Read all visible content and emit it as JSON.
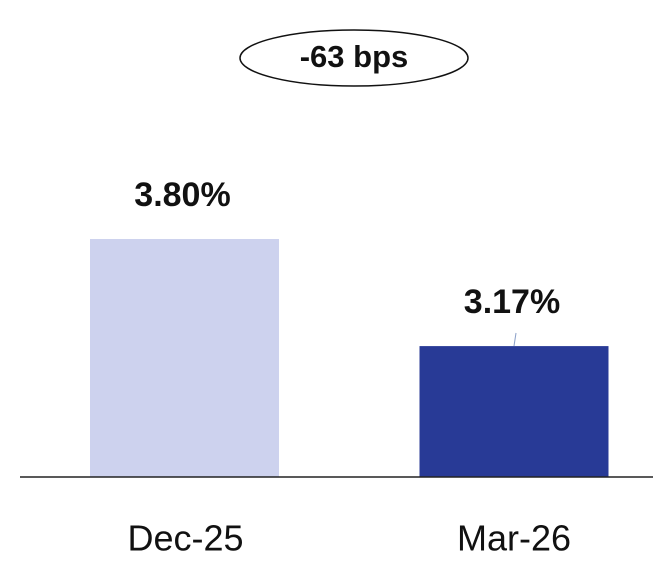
{
  "chart_data": {
    "type": "bar",
    "annotation": "-63 bps",
    "categories": [
      "Dec-25",
      "Mar-26"
    ],
    "values": [
      3.8,
      3.17
    ],
    "value_labels": [
      "3.80%",
      "3.17%"
    ],
    "colors": [
      "#cdd2ee",
      "#283a96"
    ],
    "ylim": [
      2.4,
      4.5
    ]
  }
}
